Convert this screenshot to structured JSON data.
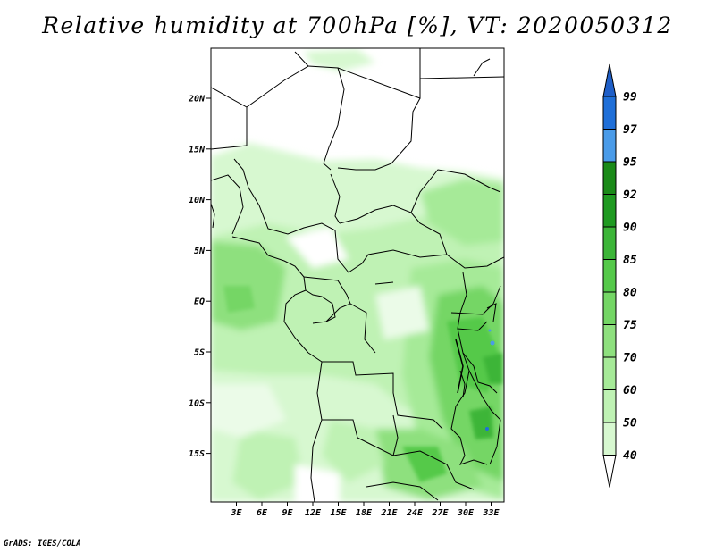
{
  "title": "Relative humidity at 700hPa [%], VT: 2020050312",
  "credit": "GrADS: IGES/COLA",
  "map": {
    "lat_ticks": [
      "20N",
      "15N",
      "10N",
      "5N",
      "EQ",
      "5S",
      "10S",
      "15S"
    ],
    "lon_ticks": [
      "3E",
      "6E",
      "9E",
      "12E",
      "15E",
      "18E",
      "21E",
      "24E",
      "27E",
      "30E",
      "33E"
    ]
  },
  "colorbar": {
    "levels": [
      "40",
      "50",
      "60",
      "70",
      "75",
      "80",
      "85",
      "90",
      "92",
      "95",
      "97",
      "99"
    ],
    "colors": [
      "#ffffff",
      "#ebfbe8",
      "#d7f8d0",
      "#bff2b4",
      "#a6ea98",
      "#8ee07e",
      "#74d665",
      "#55c94a",
      "#3cb538",
      "#1f9a21",
      "#1a8a18",
      "#4a9be8",
      "#1f6fd8",
      "#1f5fc8"
    ]
  }
}
